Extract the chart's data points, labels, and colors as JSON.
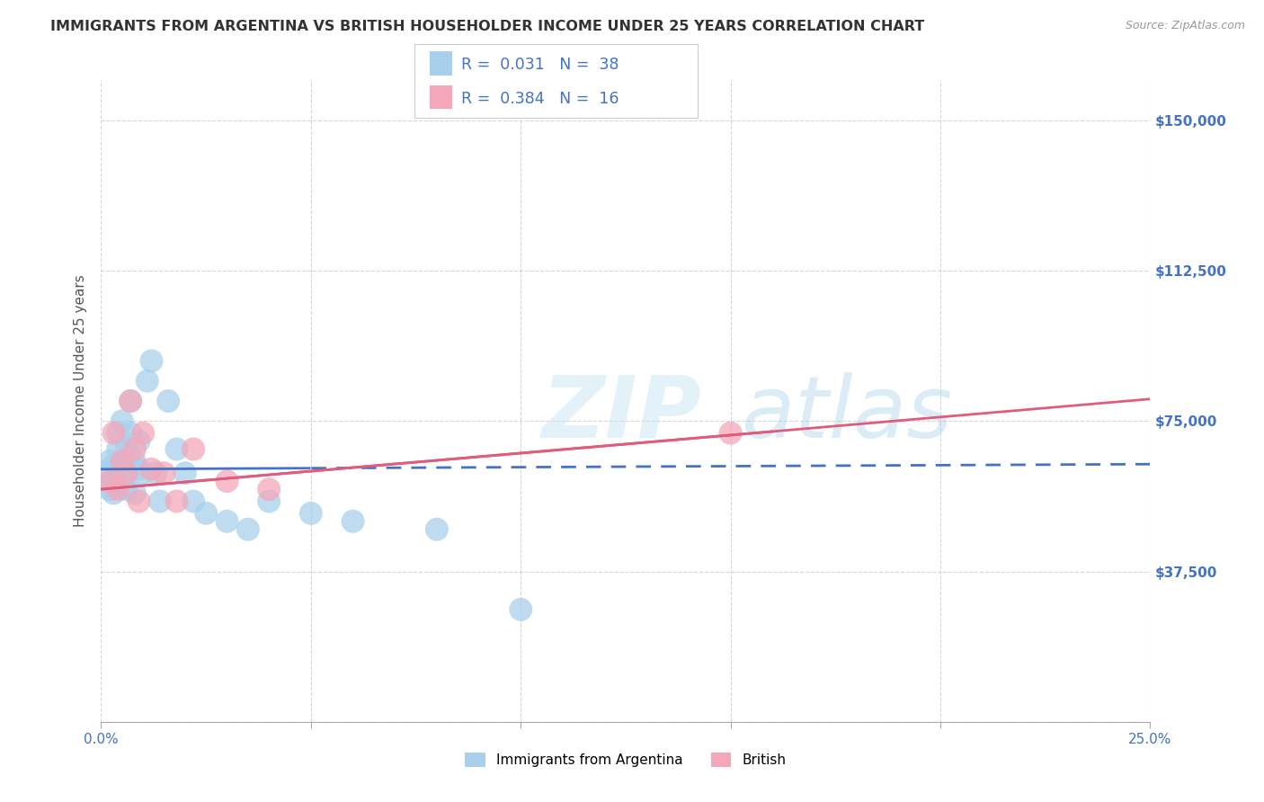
{
  "title": "IMMIGRANTS FROM ARGENTINA VS BRITISH HOUSEHOLDER INCOME UNDER 25 YEARS CORRELATION CHART",
  "source": "Source: ZipAtlas.com",
  "ylabel": "Householder Income Under 25 years",
  "xlim": [
    0.0,
    0.25
  ],
  "ylim": [
    0,
    160000
  ],
  "yticks": [
    0,
    37500,
    75000,
    112500,
    150000
  ],
  "ytick_labels": [
    "",
    "$37,500",
    "$75,000",
    "$112,500",
    "$150,000"
  ],
  "xticks": [
    0.0,
    0.05,
    0.1,
    0.15,
    0.2,
    0.25
  ],
  "xtick_labels_show": [
    "0.0%",
    "",
    "",
    "",
    "",
    "25.0%"
  ],
  "legend1_label": "Immigrants from Argentina",
  "legend2_label": "British",
  "r1": 0.031,
  "n1": 38,
  "r2": 0.384,
  "n2": 16,
  "blue_color": "#a8d0ec",
  "pink_color": "#f4a7b9",
  "blue_line_color": "#4472c4",
  "pink_line_color": "#e05c7a",
  "blue_scatter_x": [
    0.001,
    0.002,
    0.002,
    0.003,
    0.003,
    0.003,
    0.004,
    0.004,
    0.004,
    0.005,
    0.005,
    0.005,
    0.006,
    0.006,
    0.007,
    0.007,
    0.007,
    0.008,
    0.008,
    0.009,
    0.009,
    0.01,
    0.011,
    0.012,
    0.013,
    0.014,
    0.016,
    0.018,
    0.02,
    0.022,
    0.025,
    0.03,
    0.035,
    0.04,
    0.05,
    0.06,
    0.08,
    0.1
  ],
  "blue_scatter_y": [
    62000,
    58000,
    65000,
    60000,
    64000,
    57000,
    63000,
    68000,
    72000,
    65000,
    60000,
    75000,
    58000,
    68000,
    80000,
    63000,
    72000,
    65000,
    57000,
    70000,
    63000,
    62000,
    85000,
    90000,
    62000,
    55000,
    80000,
    68000,
    62000,
    55000,
    52000,
    50000,
    48000,
    55000,
    52000,
    50000,
    48000,
    28000
  ],
  "pink_scatter_x": [
    0.002,
    0.003,
    0.004,
    0.005,
    0.006,
    0.007,
    0.008,
    0.009,
    0.01,
    0.012,
    0.015,
    0.018,
    0.022,
    0.03,
    0.04,
    0.15
  ],
  "pink_scatter_y": [
    60000,
    72000,
    58000,
    65000,
    62000,
    80000,
    68000,
    55000,
    72000,
    63000,
    62000,
    55000,
    68000,
    60000,
    58000,
    72000
  ],
  "watermark_zip": "ZIP",
  "watermark_atlas": "atlas",
  "background_color": "#ffffff",
  "grid_color": "#cccccc",
  "title_color": "#333333",
  "axis_label_color": "#555555",
  "right_tick_color": "#4472c4",
  "xtick_color": "#4472c4"
}
